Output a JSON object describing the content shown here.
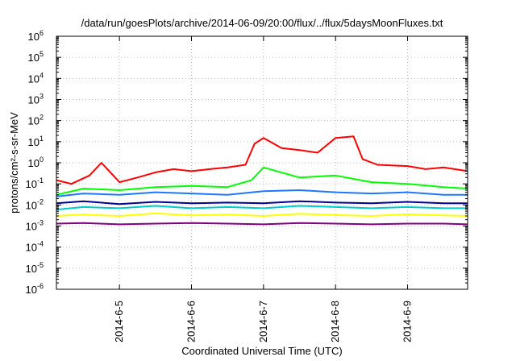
{
  "chart_data": {
    "type": "line",
    "title": "/data/run/goesPlots/archive/2014-06-09/20:00/flux/../flux/5daysMoonFluxes.txt",
    "xlabel": "Coordinated Universal Time (UTC)",
    "ylabel": "protons/cm²-s-sr-MeV",
    "yscale": "log",
    "ylim": [
      1e-06,
      1000000.0
    ],
    "xlim": [
      "2014-06-04 03:00",
      "2014-06-09 20:00"
    ],
    "grid": true,
    "xticks": [
      "2014-6-5",
      "2014-6-6",
      "2014-6-7",
      "2014-6-8",
      "2014-6-9"
    ],
    "yticks": [
      {
        "base": "10",
        "exp": "-6"
      },
      {
        "base": "10",
        "exp": "-5"
      },
      {
        "base": "10",
        "exp": "-4"
      },
      {
        "base": "10",
        "exp": "-3"
      },
      {
        "base": "10",
        "exp": "-2"
      },
      {
        "base": "10",
        "exp": "-1"
      },
      {
        "base": "10",
        "exp": "0"
      },
      {
        "base": "10",
        "exp": "1"
      },
      {
        "base": "10",
        "exp": "2"
      },
      {
        "base": "10",
        "exp": "3"
      },
      {
        "base": "10",
        "exp": "4"
      },
      {
        "base": "10",
        "exp": "5"
      },
      {
        "base": "10",
        "exp": "6"
      }
    ],
    "series": [
      {
        "color": "#800080",
        "x": [
          "2014-06-04 03:00",
          "2014-06-04 12:00",
          "2014-06-05 00:00",
          "2014-06-05 12:00",
          "2014-06-06 00:00",
          "2014-06-06 12:00",
          "2014-06-07 00:00",
          "2014-06-07 12:00",
          "2014-06-08 00:00",
          "2014-06-08 12:00",
          "2014-06-09 00:00",
          "2014-06-09 12:00",
          "2014-06-09 20:00"
        ],
        "values": [
          0.0013,
          0.0014,
          0.0012,
          0.0013,
          0.0014,
          0.0013,
          0.0012,
          0.0014,
          0.0013,
          0.0012,
          0.0013,
          0.0013,
          0.0012
        ]
      },
      {
        "color": "#ffff00",
        "x": [
          "2014-06-04 03:00",
          "2014-06-04 12:00",
          "2014-06-05 00:00",
          "2014-06-05 12:00",
          "2014-06-06 00:00",
          "2014-06-06 12:00",
          "2014-06-07 00:00",
          "2014-06-07 12:00",
          "2014-06-08 00:00",
          "2014-06-08 12:00",
          "2014-06-09 00:00",
          "2014-06-09 12:00",
          "2014-06-09 20:00"
        ],
        "values": [
          0.003,
          0.0035,
          0.003,
          0.004,
          0.0032,
          0.0035,
          0.003,
          0.0038,
          0.0033,
          0.003,
          0.0036,
          0.0032,
          0.003
        ]
      },
      {
        "color": "#00cccc",
        "x": [
          "2014-06-04 03:00",
          "2014-06-04 12:00",
          "2014-06-05 00:00",
          "2014-06-05 12:00",
          "2014-06-06 00:00",
          "2014-06-06 12:00",
          "2014-06-07 00:00",
          "2014-06-07 12:00",
          "2014-06-08 00:00",
          "2014-06-08 12:00",
          "2014-06-09 00:00",
          "2014-06-09 12:00",
          "2014-06-09 20:00"
        ],
        "values": [
          0.006,
          0.008,
          0.007,
          0.009,
          0.007,
          0.008,
          0.007,
          0.009,
          0.008,
          0.007,
          0.008,
          0.007,
          0.007
        ]
      },
      {
        "color": "#00008b",
        "x": [
          "2014-06-04 03:00",
          "2014-06-04 12:00",
          "2014-06-05 00:00",
          "2014-06-05 12:00",
          "2014-06-06 00:00",
          "2014-06-06 12:00",
          "2014-06-07 00:00",
          "2014-06-07 12:00",
          "2014-06-08 00:00",
          "2014-06-08 12:00",
          "2014-06-09 00:00",
          "2014-06-09 12:00",
          "2014-06-09 20:00"
        ],
        "values": [
          0.012,
          0.015,
          0.011,
          0.014,
          0.012,
          0.013,
          0.012,
          0.015,
          0.013,
          0.012,
          0.014,
          0.012,
          0.012
        ]
      },
      {
        "color": "#1e78ff",
        "x": [
          "2014-06-04 03:00",
          "2014-06-04 12:00",
          "2014-06-05 00:00",
          "2014-06-05 12:00",
          "2014-06-06 00:00",
          "2014-06-06 12:00",
          "2014-06-07 00:00",
          "2014-06-07 12:00",
          "2014-06-08 00:00",
          "2014-06-08 12:00",
          "2014-06-09 00:00",
          "2014-06-09 12:00",
          "2014-06-09 20:00"
        ],
        "values": [
          0.025,
          0.035,
          0.03,
          0.04,
          0.035,
          0.03,
          0.045,
          0.05,
          0.04,
          0.035,
          0.04,
          0.03,
          0.03
        ]
      },
      {
        "color": "#00ff00",
        "x": [
          "2014-06-04 03:00",
          "2014-06-04 12:00",
          "2014-06-05 00:00",
          "2014-06-05 12:00",
          "2014-06-06 00:00",
          "2014-06-06 12:00",
          "2014-06-06 20:00",
          "2014-06-07 00:00",
          "2014-06-07 12:00",
          "2014-06-08 00:00",
          "2014-06-08 12:00",
          "2014-06-09 00:00",
          "2014-06-09 12:00",
          "2014-06-09 20:00"
        ],
        "values": [
          0.03,
          0.06,
          0.05,
          0.07,
          0.08,
          0.07,
          0.15,
          0.6,
          0.2,
          0.25,
          0.12,
          0.1,
          0.07,
          0.06
        ]
      },
      {
        "color": "#ff0000",
        "x": [
          "2014-06-04 03:00",
          "2014-06-04 08:00",
          "2014-06-04 14:00",
          "2014-06-04 18:00",
          "2014-06-05 00:00",
          "2014-06-05 06:00",
          "2014-06-05 12:00",
          "2014-06-05 18:00",
          "2014-06-06 00:00",
          "2014-06-06 06:00",
          "2014-06-06 12:00",
          "2014-06-06 18:00",
          "2014-06-06 21:00",
          "2014-06-07 00:00",
          "2014-06-07 06:00",
          "2014-06-07 12:00",
          "2014-06-07 18:00",
          "2014-06-08 00:00",
          "2014-06-08 06:00",
          "2014-06-08 09:00",
          "2014-06-08 14:00",
          "2014-06-09 00:00",
          "2014-06-09 06:00",
          "2014-06-09 12:00",
          "2014-06-09 20:00"
        ],
        "values": [
          0.15,
          0.1,
          0.25,
          1.0,
          0.12,
          0.2,
          0.35,
          0.5,
          0.4,
          0.5,
          0.6,
          0.8,
          8,
          15,
          5,
          4,
          3,
          15,
          18,
          1.5,
          0.8,
          0.7,
          0.5,
          0.6,
          0.4
        ]
      }
    ]
  }
}
